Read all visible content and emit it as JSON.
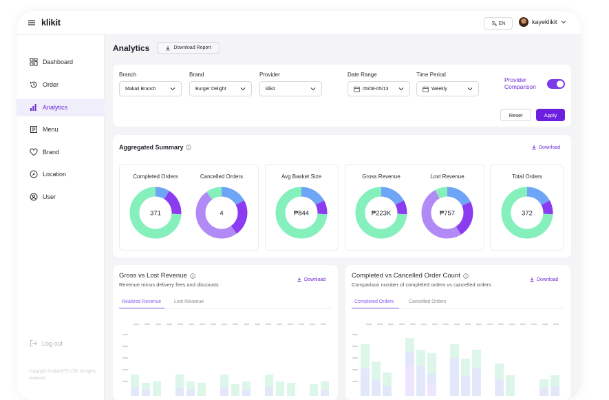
{
  "app": {
    "logo": "klikit",
    "language": "EN",
    "user_name": "kayeklikit"
  },
  "sidebar": {
    "items": [
      {
        "label": "Dashboard",
        "icon": "dashboard-icon",
        "active": false
      },
      {
        "label": "Order",
        "icon": "history-icon",
        "active": false
      },
      {
        "label": "Analytics",
        "icon": "analytics-icon",
        "active": true
      },
      {
        "label": "Menu",
        "icon": "menu-list-icon",
        "active": false
      },
      {
        "label": "Brand",
        "icon": "heart-icon",
        "active": false
      },
      {
        "label": "Location",
        "icon": "compass-icon",
        "active": false
      },
      {
        "label": "User",
        "icon": "user-icon",
        "active": false
      }
    ],
    "logout_label": "Log out",
    "copyright": "Copyright © klikit PTE LTD. All rights reserved."
  },
  "header": {
    "title": "Analytics",
    "download_report": "Download Report"
  },
  "filters": {
    "branch": {
      "label": "Branch",
      "value": "Makati Branch"
    },
    "brand": {
      "label": "Brand",
      "value": "Burger Delight"
    },
    "provider": {
      "label": "Provider",
      "value": "klikit"
    },
    "date_range": {
      "label": "Date Range",
      "value": "05/08-05/13"
    },
    "time_period": {
      "label": "Time Period",
      "value": "Weekly"
    },
    "provider_comparison": {
      "label_line1": "Provider",
      "label_line2": "Comparison",
      "enabled": true
    },
    "reset_label": "Reset",
    "apply_label": "Apply"
  },
  "summary": {
    "title": "Aggregated Summary",
    "download_label": "Download",
    "metrics": [
      {
        "title": "Completed Orders",
        "value": "371",
        "segments": [
          0.74,
          0.09,
          0.17
        ]
      },
      {
        "title": "Cancelled Orders",
        "value": "4",
        "segments": [
          0.17,
          0.1,
          0.23,
          0.5
        ]
      },
      {
        "title": "Avg Basket Size",
        "value": "₱844",
        "segments": [
          0.74,
          0.17,
          0.09
        ]
      },
      {
        "title": "Gross Revenue",
        "value": "₱223K",
        "segments": [
          0.74,
          0.17,
          0.09
        ]
      },
      {
        "title": "Lost Revenue",
        "value": "₱757",
        "segments": [
          0.18,
          0.08,
          0.23,
          0.51
        ]
      },
      {
        "title": "Total Orders",
        "value": "372",
        "segments": [
          0.74,
          0.17,
          0.09
        ]
      }
    ],
    "colors": {
      "green": "#86f0bd",
      "blue": "#6fa5f6",
      "purple": "#8b3cf0",
      "lavender": "#b28af5"
    }
  },
  "gross_vs_lost": {
    "title": "Gross vs Lost Revenue",
    "subtitle": "Revenue minus delivery fees and discounts",
    "download_label": "Download",
    "tabs": [
      "Realized Revenue",
      "Lost Revenue"
    ]
  },
  "completed_vs_cancelled": {
    "title": "Completed vs Cancelled Order Count",
    "subtitle": "Comparison number of completed orders vs cancelled orders",
    "download_label": "Download",
    "tabs": [
      "Completed Orders",
      "Cancelled Orders"
    ]
  }
}
